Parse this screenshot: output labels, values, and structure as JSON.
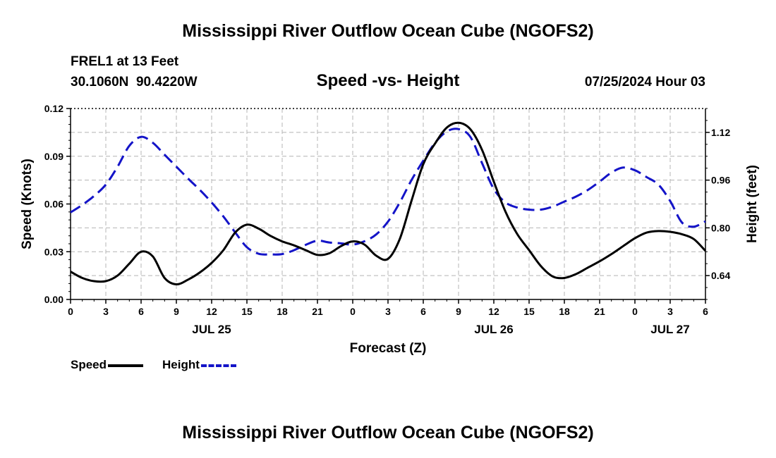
{
  "page": {
    "title_top": "Mississippi River Outflow Ocean Cube (NGOFS2)",
    "title_bottom": "Mississippi River Outflow Ocean Cube (NGOFS2)",
    "station_line": "FREL1 at 13 Feet",
    "coords_line": "30.1060N  90.4220W",
    "plot_title": "Speed -vs- Height",
    "datetime": "07/25/2024 Hour 03"
  },
  "colors": {
    "speed": "#000000",
    "height": "#1414c8",
    "grid": "#b4b4b4"
  },
  "chart_data": {
    "type": "line",
    "title": "Speed -vs- Height",
    "xlabel": "Forecast (Z)",
    "ylabel": "Speed (Knots)",
    "y2label": "Height (feet)",
    "xlim": [
      0,
      54
    ],
    "ylim": [
      0,
      0.12
    ],
    "y2lim": [
      0.56,
      1.2
    ],
    "xticks": [
      0,
      3,
      6,
      9,
      12,
      15,
      18,
      21,
      24,
      27,
      30,
      33,
      36,
      39,
      42,
      45,
      48,
      51,
      54
    ],
    "xtick_labels": [
      "0",
      "3",
      "6",
      "9",
      "12",
      "15",
      "18",
      "21",
      "0",
      "3",
      "6",
      "9",
      "12",
      "15",
      "18",
      "21",
      "0",
      "3",
      "6"
    ],
    "day_labels": [
      {
        "label": "JUL 25",
        "x": 12
      },
      {
        "label": "JUL 26",
        "x": 36
      },
      {
        "label": "JUL 27",
        "x": 51
      }
    ],
    "yticks": [
      0.0,
      0.03,
      0.06,
      0.09,
      0.12
    ],
    "ytick_labels": [
      "0.00",
      "0.03",
      "0.06",
      "0.09",
      "0.12"
    ],
    "y2ticks": [
      0.64,
      0.8,
      0.96,
      1.12
    ],
    "y2tick_labels": [
      "0.64",
      "0.80",
      "0.96",
      "1.12"
    ],
    "legend": [
      {
        "name": "Speed",
        "style": "solid"
      },
      {
        "name": "Height",
        "style": "dashed"
      }
    ],
    "series": [
      {
        "name": "Speed",
        "axis": "left",
        "style": "solid",
        "x": [
          0,
          1,
          2,
          3,
          4,
          5,
          6,
          7,
          8,
          9,
          10,
          11,
          12,
          13,
          14,
          15,
          16,
          17,
          18,
          19,
          20,
          21,
          22,
          23,
          24,
          25,
          26,
          27,
          28,
          29,
          30,
          31,
          32,
          33,
          34,
          35,
          36,
          37,
          38,
          39,
          40,
          41,
          42,
          43,
          44,
          45,
          46,
          47,
          48,
          49,
          50,
          51,
          52,
          53,
          54
        ],
        "values": [
          0.0175,
          0.0135,
          0.0115,
          0.0115,
          0.015,
          0.0225,
          0.03,
          0.027,
          0.0135,
          0.0095,
          0.0125,
          0.017,
          0.023,
          0.031,
          0.042,
          0.047,
          0.0445,
          0.04,
          0.0365,
          0.034,
          0.031,
          0.028,
          0.029,
          0.0335,
          0.0365,
          0.0345,
          0.0275,
          0.0255,
          0.038,
          0.062,
          0.085,
          0.098,
          0.108,
          0.111,
          0.107,
          0.094,
          0.074,
          0.055,
          0.041,
          0.031,
          0.021,
          0.0145,
          0.0135,
          0.016,
          0.02,
          0.024,
          0.0285,
          0.0335,
          0.0385,
          0.042,
          0.043,
          0.0425,
          0.041,
          0.038,
          0.0305
        ]
      },
      {
        "name": "Height",
        "axis": "right",
        "style": "dashed",
        "x": [
          0,
          1,
          2,
          3,
          4,
          5,
          6,
          7,
          8,
          9,
          10,
          11,
          12,
          13,
          14,
          15,
          16,
          17,
          18,
          19,
          20,
          21,
          22,
          23,
          24,
          25,
          26,
          27,
          28,
          29,
          30,
          31,
          32,
          33,
          34,
          35,
          36,
          37,
          38,
          39,
          40,
          41,
          42,
          43,
          44,
          45,
          46,
          47,
          48,
          49,
          50,
          51,
          52,
          53,
          54
        ],
        "values": [
          0.852,
          0.877,
          0.907,
          0.945,
          1.005,
          1.075,
          1.105,
          1.085,
          1.045,
          1.005,
          0.965,
          0.927,
          0.885,
          0.838,
          0.785,
          0.735,
          0.713,
          0.711,
          0.712,
          0.725,
          0.743,
          0.757,
          0.751,
          0.748,
          0.744,
          0.755,
          0.778,
          0.821,
          0.885,
          0.96,
          1.025,
          1.085,
          1.123,
          1.131,
          1.105,
          1.017,
          0.93,
          0.885,
          0.868,
          0.861,
          0.861,
          0.871,
          0.888,
          0.905,
          0.927,
          0.955,
          0.985,
          1.002,
          0.993,
          0.97,
          0.945,
          0.89,
          0.818,
          0.804,
          0.822
        ]
      }
    ]
  }
}
